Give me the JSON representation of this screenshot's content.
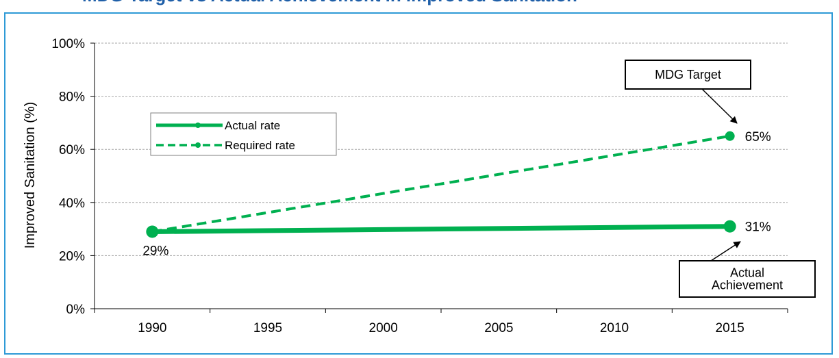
{
  "chart_data": {
    "type": "line",
    "title": "",
    "ylabel": "Improved Sanitation (%)",
    "xlabel": "",
    "x_ticks": [
      "1990",
      "1995",
      "2000",
      "2005",
      "2010",
      "2015"
    ],
    "y_ticks": [
      "0%",
      "20%",
      "40%",
      "60%",
      "80%",
      "100%"
    ],
    "xlim": [
      1987.5,
      2017.5
    ],
    "ylim": [
      0,
      100
    ],
    "grid": "horizontal-dashed",
    "legend_position": "left",
    "series": [
      {
        "name": "Actual rate",
        "style": "solid",
        "color": "#00b050",
        "points": [
          {
            "x": 1990,
            "y": 29,
            "label": "29%"
          },
          {
            "x": 2015,
            "y": 31,
            "label": "31%"
          }
        ]
      },
      {
        "name": "Required rate",
        "style": "dashed",
        "color": "#00b050",
        "points": [
          {
            "x": 1990,
            "y": 29,
            "label": ""
          },
          {
            "x": 2015,
            "y": 65,
            "label": "65%"
          }
        ]
      }
    ],
    "annotations": [
      {
        "lines": [
          "MDG  Target"
        ],
        "points_to": {
          "x": 2015,
          "y": 65
        }
      },
      {
        "lines": [
          "Actual",
          "Achievement"
        ],
        "points_to": {
          "x": 2015,
          "y": 31
        }
      }
    ],
    "header_text": "MDG Target vs Actual Achievement in Improved Sanitation"
  },
  "colors": {
    "frame": "#2e9ad6",
    "title": "#1f5fa8",
    "series": "#00b050",
    "grid": "#a6a6a6"
  }
}
